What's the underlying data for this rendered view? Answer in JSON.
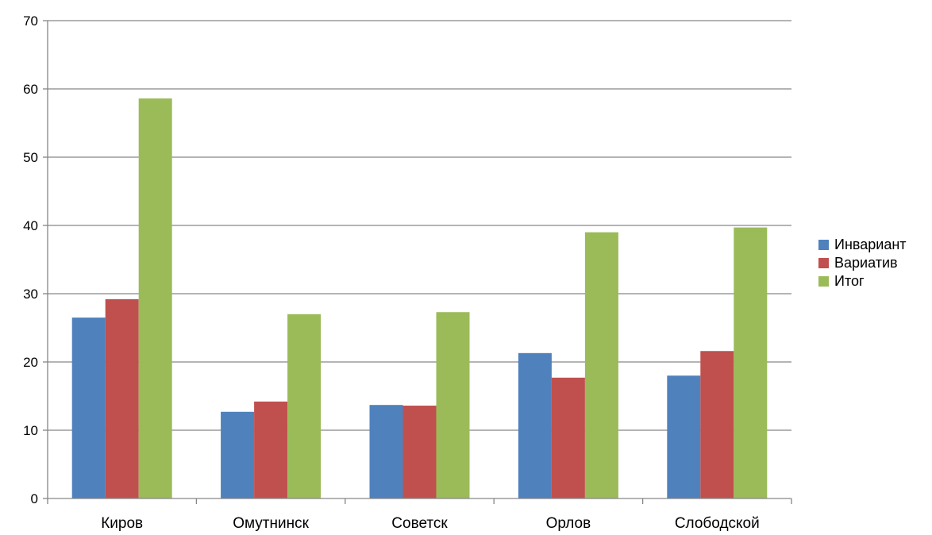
{
  "chart_data": {
    "type": "bar",
    "categories": [
      "Киров",
      "Омутнинск",
      "Советск",
      "Орлов",
      "Слободской"
    ],
    "series": [
      {
        "name": "Инвариант",
        "values": [
          26.5,
          12.7,
          13.7,
          21.3,
          18.0
        ],
        "color": "#4F81BD"
      },
      {
        "name": "Вариатив",
        "values": [
          29.2,
          14.2,
          13.6,
          17.7,
          21.6
        ],
        "color": "#C0504D"
      },
      {
        "name": "Итог",
        "values": [
          58.6,
          27.0,
          27.3,
          39.0,
          39.7
        ],
        "color": "#9BBB59"
      }
    ],
    "ylim": [
      0,
      70
    ],
    "yticks": [
      0,
      10,
      20,
      30,
      40,
      50,
      60,
      70
    ],
    "grid": true,
    "legend_position": "right"
  }
}
